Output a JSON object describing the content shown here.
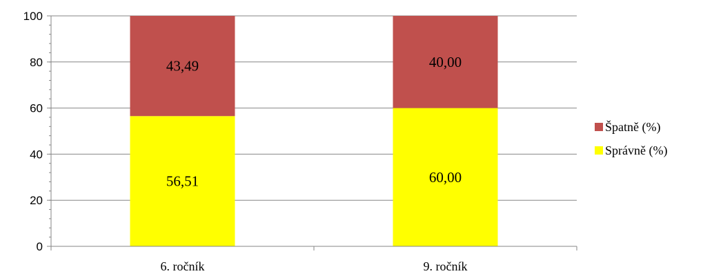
{
  "chart_data": {
    "type": "bar",
    "stacked": true,
    "categories": [
      "6. ročník",
      "9. ročník"
    ],
    "series": [
      {
        "name": "Správně (%)",
        "values": [
          56.51,
          60.0
        ],
        "labels": [
          "56,51",
          "60,00"
        ],
        "color": "#ffff00"
      },
      {
        "name": "Špatně (%)",
        "values": [
          43.49,
          40.0
        ],
        "labels": [
          "43,49",
          "40,00"
        ],
        "color": "#c0504d"
      }
    ],
    "ylim": [
      0,
      100
    ],
    "yticks": [
      0,
      20,
      40,
      60,
      80,
      100
    ],
    "grid": true,
    "legend": "right",
    "legend_order": [
      "Špatně (%)",
      "Správně (%)"
    ]
  }
}
